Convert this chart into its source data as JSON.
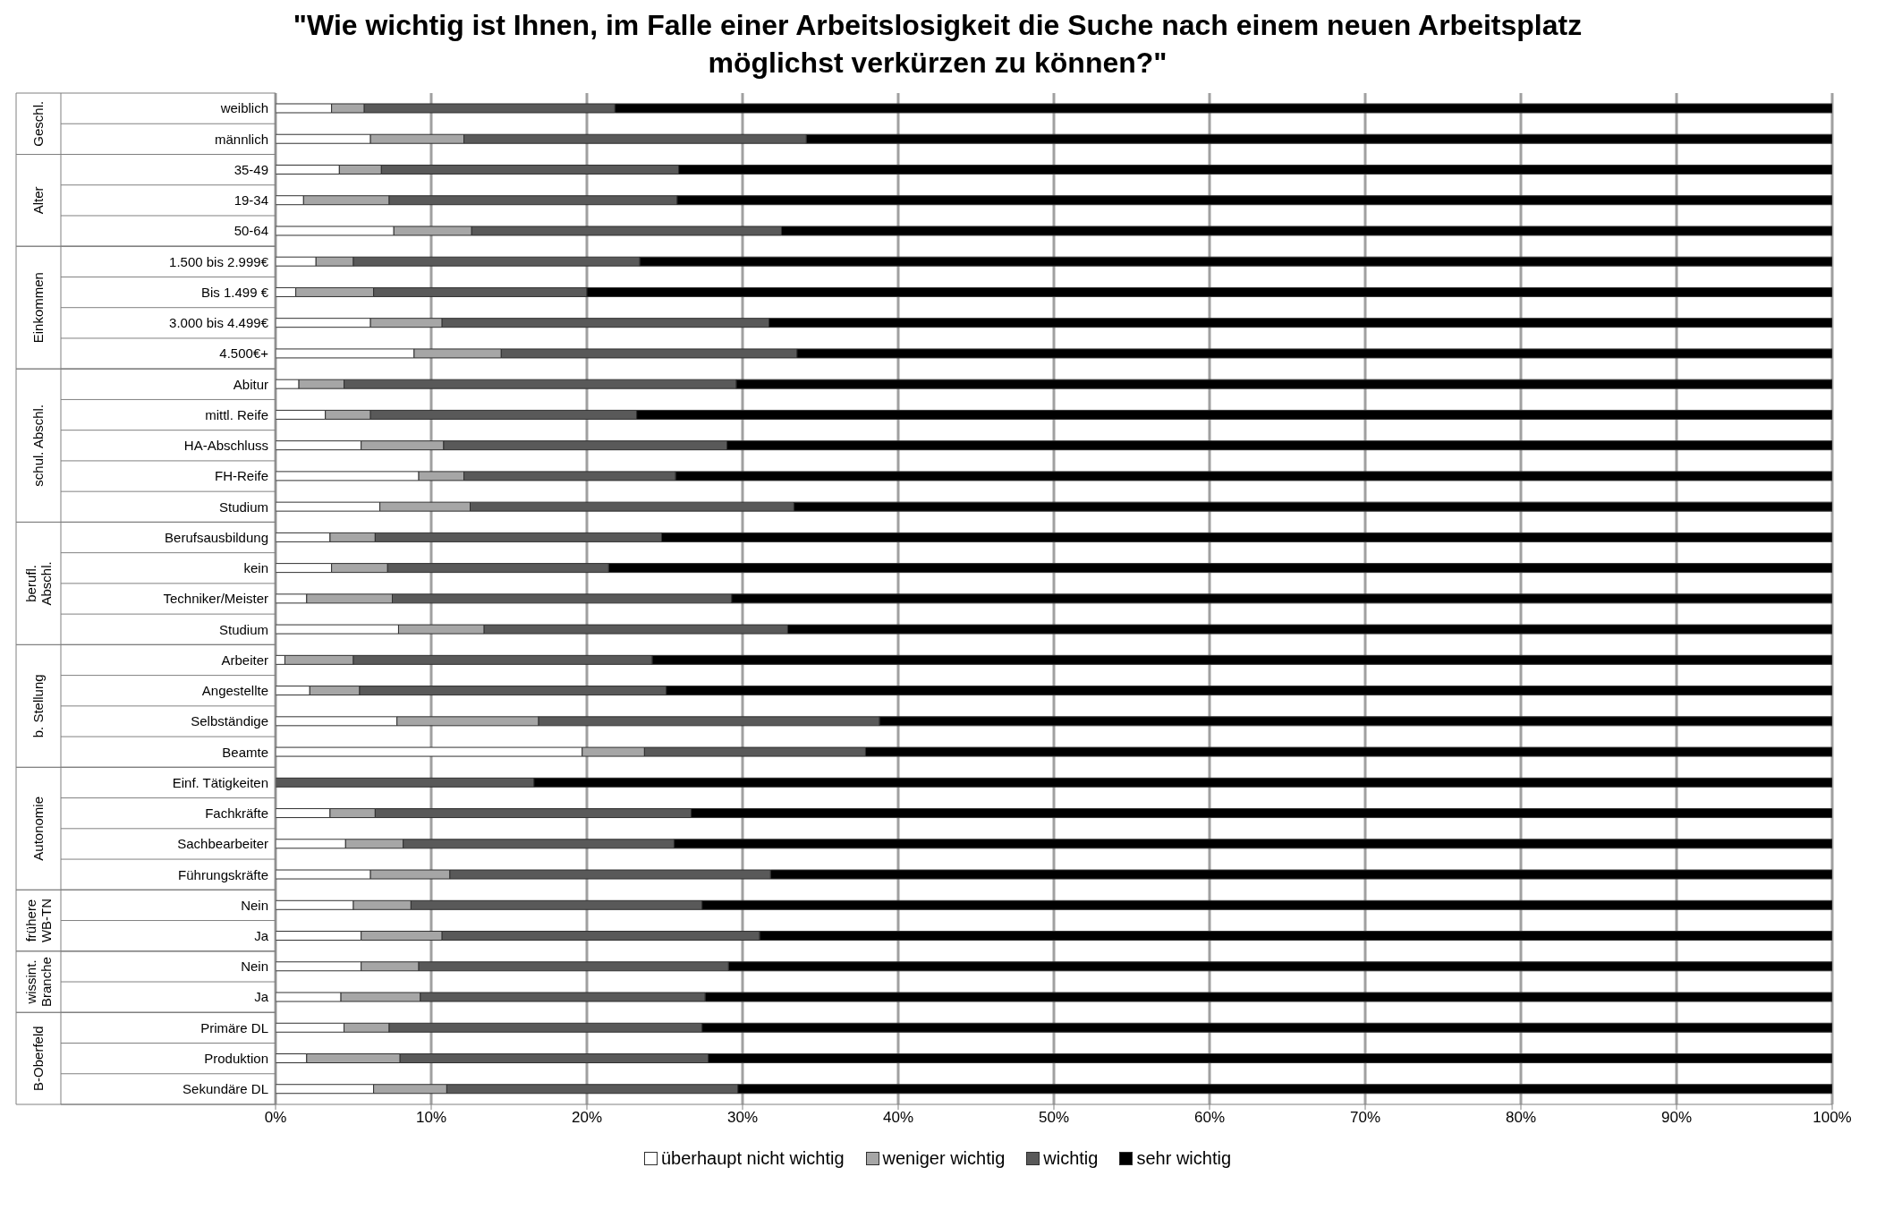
{
  "chart_data": {
    "type": "bar",
    "orientation": "horizontal",
    "stacked": true,
    "title": "\"Wie wichtig ist Ihnen, im Falle einer Arbeitslosigkeit die Suche nach einem neuen Arbeitsplatz möglichst verkürzen zu können?\"",
    "categories": [
      "weiblich",
      "männlich",
      "35-49",
      "19-34",
      "50-64",
      "1.500 bis 2.999€",
      "Bis 1.499 €",
      "3.000 bis 4.499€",
      "4.500€+",
      "Abitur",
      "mittl. Reife",
      "HA-Abschluss",
      "FH-Reife",
      "Studium",
      "Berufsausbildung",
      "kein",
      "Techniker/Meister",
      "Studium",
      "Arbeiter",
      "Angestellte",
      "Selbständige",
      "Beamte",
      "Einf. Tätigkeiten",
      "Fachkräfte",
      "Sachbearbeiter",
      "Führungskräfte",
      "Nein",
      "Ja",
      "Nein",
      "Ja",
      "Primäre DL",
      "Produktion",
      "Sekundäre DL"
    ],
    "series": [
      {
        "name": "überhaupt nicht wichtig",
        "color": "#ffffff",
        "values": [
          3.6,
          6.1,
          4.1,
          1.8,
          7.6,
          2.6,
          1.3,
          6.1,
          8.9,
          1.5,
          3.2,
          5.5,
          9.2,
          6.7,
          3.5,
          3.6,
          2.0,
          7.9,
          0.6,
          2.2,
          7.8,
          19.7,
          0,
          3.5,
          4.5,
          6.1,
          5.0,
          5.5,
          5.5,
          4.2,
          4.4,
          2.0,
          6.3
        ]
      },
      {
        "name": "weniger wichtig",
        "color": "#a6a6a6",
        "values": [
          2.1,
          6.0,
          2.7,
          5.5,
          5.0,
          2.4,
          5.0,
          4.6,
          5.6,
          2.9,
          2.9,
          5.3,
          2.9,
          5.8,
          2.9,
          3.6,
          5.5,
          5.5,
          4.4,
          3.2,
          9.1,
          4.0,
          0,
          2.9,
          3.7,
          5.1,
          3.7,
          5.2,
          3.7,
          5.1,
          2.9,
          6.0,
          4.7
        ]
      },
      {
        "name": "wichtig",
        "color": "#595959",
        "values": [
          16.1,
          22.0,
          19.1,
          18.5,
          19.9,
          18.4,
          13.7,
          21.0,
          19.0,
          25.2,
          17.1,
          18.2,
          13.6,
          20.8,
          18.4,
          14.2,
          21.8,
          19.5,
          19.2,
          19.7,
          21.9,
          14.2,
          16.6,
          20.3,
          17.4,
          20.6,
          18.7,
          20.4,
          19.9,
          18.3,
          20.1,
          19.8,
          18.7
        ]
      },
      {
        "name": "sehr wichtig",
        "color": "#000000",
        "values": [
          78.2,
          65.9,
          74.1,
          74.2,
          67.5,
          76.6,
          80.0,
          68.3,
          66.5,
          70.4,
          76.8,
          71.0,
          74.3,
          66.7,
          75.2,
          78.6,
          70.7,
          67.1,
          75.8,
          74.9,
          61.2,
          62.1,
          83.4,
          73.3,
          74.4,
          68.2,
          72.6,
          68.9,
          70.9,
          72.4,
          72.6,
          72.2,
          70.3
        ]
      }
    ],
    "xlim": [
      0,
      100
    ],
    "xticks": [
      {
        "value": 0,
        "label": "0%"
      },
      {
        "value": 10,
        "label": "10%"
      },
      {
        "value": 20,
        "label": "20%"
      },
      {
        "value": 30,
        "label": "30%"
      },
      {
        "value": 40,
        "label": "40%"
      },
      {
        "value": 50,
        "label": "50%"
      },
      {
        "value": 60,
        "label": "60%"
      },
      {
        "value": 70,
        "label": "70%"
      },
      {
        "value": 80,
        "label": "80%"
      },
      {
        "value": 90,
        "label": "90%"
      },
      {
        "value": 100,
        "label": "100%"
      }
    ],
    "grid": "x",
    "legend": "bottom",
    "annotations": [
      "Geschl.",
      "Alter",
      "Einkommen",
      "schul. Abschl.",
      "berufl. Abschl.",
      "b. Stellung",
      "Autonomie",
      "frühere WB-TN",
      "wissint. Branche",
      "B-Oberfeld"
    ]
  }
}
